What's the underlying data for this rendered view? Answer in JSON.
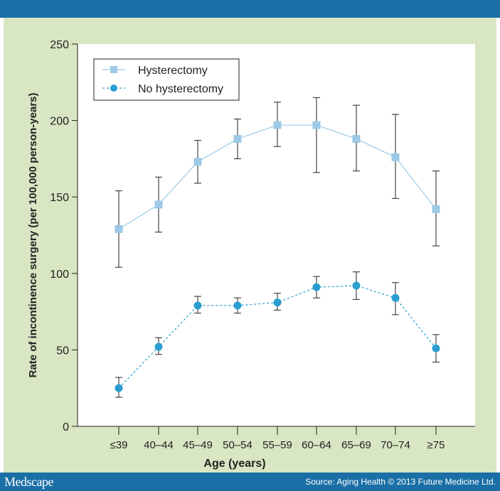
{
  "chart_data": {
    "type": "line",
    "xlabel": "Age (years)",
    "ylabel": "Rate of incontinence surgery (per 100,000 person-years)",
    "categories": [
      "≤39",
      "40–44",
      "45–49",
      "50–54",
      "55–59",
      "60–64",
      "65–69",
      "70–74",
      "≥75"
    ],
    "ylim": [
      0,
      250
    ],
    "yticks": [
      0,
      50,
      100,
      150,
      200,
      250
    ],
    "grid": false,
    "legend_position": "top-left",
    "series": [
      {
        "name": "Hysterectomy",
        "marker": "square",
        "line": "solid",
        "color": "#9cc9e6",
        "values": [
          129,
          145,
          173,
          188,
          197,
          197,
          188,
          176,
          142
        ],
        "lower": [
          104,
          127,
          159,
          175,
          183,
          166,
          167,
          149,
          118
        ],
        "upper": [
          154,
          163,
          187,
          201,
          212,
          215,
          210,
          204,
          167
        ]
      },
      {
        "name": "No hysterectomy",
        "marker": "circle",
        "line": "dashed",
        "color": "#2a9ed0",
        "values": [
          25,
          52,
          79,
          79,
          81,
          91,
          92,
          84,
          51
        ],
        "lower": [
          19,
          47,
          74,
          74,
          76,
          84,
          83,
          73,
          42
        ],
        "upper": [
          32,
          58,
          85,
          84,
          87,
          98,
          101,
          94,
          60
        ]
      }
    ]
  },
  "footer": {
    "logo": "Medscape",
    "source": "Source: Aging Health © 2013 Future Medicine Ltd."
  },
  "colors": {
    "bar": "#1a6fa6",
    "panel": "#d8e6c3"
  }
}
